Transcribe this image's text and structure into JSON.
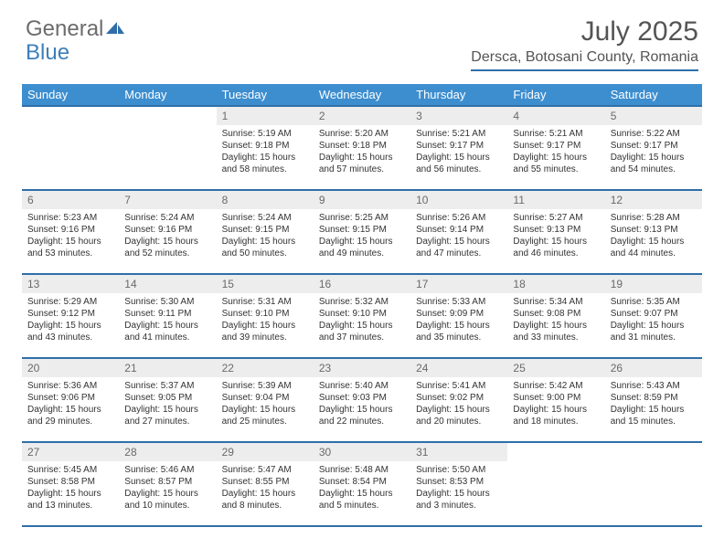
{
  "brand": {
    "a": "General",
    "b": "Blue"
  },
  "title": "July 2025",
  "location": "Dersca, Botosani County, Romania",
  "colors": {
    "header_bg": "#3d8ecf",
    "rule": "#2f6fa9",
    "daynum_bg": "#ededed",
    "text": "#333333",
    "title_text": "#545454",
    "logo_gray": "#6c6c6c",
    "logo_blue": "#3d7fbb"
  },
  "dayNames": [
    "Sunday",
    "Monday",
    "Tuesday",
    "Wednesday",
    "Thursday",
    "Friday",
    "Saturday"
  ],
  "startOffset": 2,
  "daysInMonth": 31,
  "days": [
    {
      "n": 1,
      "sr": "5:19 AM",
      "ss": "9:18 PM",
      "dl": "15 hours and 58 minutes."
    },
    {
      "n": 2,
      "sr": "5:20 AM",
      "ss": "9:18 PM",
      "dl": "15 hours and 57 minutes."
    },
    {
      "n": 3,
      "sr": "5:21 AM",
      "ss": "9:17 PM",
      "dl": "15 hours and 56 minutes."
    },
    {
      "n": 4,
      "sr": "5:21 AM",
      "ss": "9:17 PM",
      "dl": "15 hours and 55 minutes."
    },
    {
      "n": 5,
      "sr": "5:22 AM",
      "ss": "9:17 PM",
      "dl": "15 hours and 54 minutes."
    },
    {
      "n": 6,
      "sr": "5:23 AM",
      "ss": "9:16 PM",
      "dl": "15 hours and 53 minutes."
    },
    {
      "n": 7,
      "sr": "5:24 AM",
      "ss": "9:16 PM",
      "dl": "15 hours and 52 minutes."
    },
    {
      "n": 8,
      "sr": "5:24 AM",
      "ss": "9:15 PM",
      "dl": "15 hours and 50 minutes."
    },
    {
      "n": 9,
      "sr": "5:25 AM",
      "ss": "9:15 PM",
      "dl": "15 hours and 49 minutes."
    },
    {
      "n": 10,
      "sr": "5:26 AM",
      "ss": "9:14 PM",
      "dl": "15 hours and 47 minutes."
    },
    {
      "n": 11,
      "sr": "5:27 AM",
      "ss": "9:13 PM",
      "dl": "15 hours and 46 minutes."
    },
    {
      "n": 12,
      "sr": "5:28 AM",
      "ss": "9:13 PM",
      "dl": "15 hours and 44 minutes."
    },
    {
      "n": 13,
      "sr": "5:29 AM",
      "ss": "9:12 PM",
      "dl": "15 hours and 43 minutes."
    },
    {
      "n": 14,
      "sr": "5:30 AM",
      "ss": "9:11 PM",
      "dl": "15 hours and 41 minutes."
    },
    {
      "n": 15,
      "sr": "5:31 AM",
      "ss": "9:10 PM",
      "dl": "15 hours and 39 minutes."
    },
    {
      "n": 16,
      "sr": "5:32 AM",
      "ss": "9:10 PM",
      "dl": "15 hours and 37 minutes."
    },
    {
      "n": 17,
      "sr": "5:33 AM",
      "ss": "9:09 PM",
      "dl": "15 hours and 35 minutes."
    },
    {
      "n": 18,
      "sr": "5:34 AM",
      "ss": "9:08 PM",
      "dl": "15 hours and 33 minutes."
    },
    {
      "n": 19,
      "sr": "5:35 AM",
      "ss": "9:07 PM",
      "dl": "15 hours and 31 minutes."
    },
    {
      "n": 20,
      "sr": "5:36 AM",
      "ss": "9:06 PM",
      "dl": "15 hours and 29 minutes."
    },
    {
      "n": 21,
      "sr": "5:37 AM",
      "ss": "9:05 PM",
      "dl": "15 hours and 27 minutes."
    },
    {
      "n": 22,
      "sr": "5:39 AM",
      "ss": "9:04 PM",
      "dl": "15 hours and 25 minutes."
    },
    {
      "n": 23,
      "sr": "5:40 AM",
      "ss": "9:03 PM",
      "dl": "15 hours and 22 minutes."
    },
    {
      "n": 24,
      "sr": "5:41 AM",
      "ss": "9:02 PM",
      "dl": "15 hours and 20 minutes."
    },
    {
      "n": 25,
      "sr": "5:42 AM",
      "ss": "9:00 PM",
      "dl": "15 hours and 18 minutes."
    },
    {
      "n": 26,
      "sr": "5:43 AM",
      "ss": "8:59 PM",
      "dl": "15 hours and 15 minutes."
    },
    {
      "n": 27,
      "sr": "5:45 AM",
      "ss": "8:58 PM",
      "dl": "15 hours and 13 minutes."
    },
    {
      "n": 28,
      "sr": "5:46 AM",
      "ss": "8:57 PM",
      "dl": "15 hours and 10 minutes."
    },
    {
      "n": 29,
      "sr": "5:47 AM",
      "ss": "8:55 PM",
      "dl": "15 hours and 8 minutes."
    },
    {
      "n": 30,
      "sr": "5:48 AM",
      "ss": "8:54 PM",
      "dl": "15 hours and 5 minutes."
    },
    {
      "n": 31,
      "sr": "5:50 AM",
      "ss": "8:53 PM",
      "dl": "15 hours and 3 minutes."
    }
  ],
  "labels": {
    "sunrise": "Sunrise:",
    "sunset": "Sunset:",
    "daylight": "Daylight:"
  }
}
